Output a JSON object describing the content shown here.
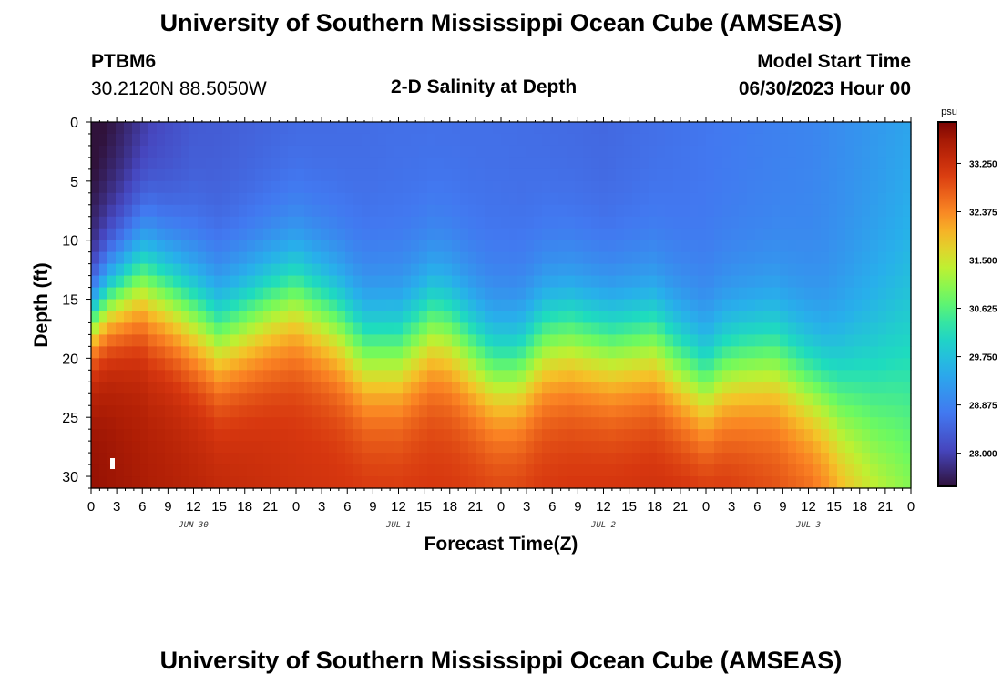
{
  "header": {
    "title": "University of Southern Mississippi Ocean Cube (AMSEAS)",
    "station_id": "PTBM6",
    "station_coords": "30.2120N  88.5050W",
    "plot_subtitle": "2-D Salinity at Depth",
    "model_start_label": "Model Start Time",
    "model_start_value": "06/30/2023 Hour 00"
  },
  "footer": {
    "title": "University of Southern Mississippi Ocean Cube (AMSEAS)"
  },
  "chart_data": {
    "type": "heatmap",
    "title": "2-D Salinity at Depth",
    "xlabel": "Forecast Time(Z)",
    "ylabel": "Depth (ft)",
    "x_range_hours": [
      0,
      96
    ],
    "x_tick_labels": [
      "0",
      "3",
      "6",
      "9",
      "12",
      "15",
      "18",
      "21",
      "0",
      "3",
      "6",
      "9",
      "12",
      "15",
      "18",
      "21",
      "0",
      "3",
      "6",
      "9",
      "12",
      "15",
      "18",
      "21",
      "0",
      "3",
      "6",
      "9",
      "12",
      "15",
      "18",
      "21",
      "0"
    ],
    "date_labels": [
      {
        "label": "JUN 30",
        "hour": 12
      },
      {
        "label": "JUL 1",
        "hour": 36
      },
      {
        "label": "JUL 2",
        "hour": 60
      },
      {
        "label": "JUL 3",
        "hour": 84
      }
    ],
    "y_range_ft": [
      0,
      31
    ],
    "y_ticks": [
      0,
      5,
      10,
      15,
      20,
      25,
      30
    ],
    "colorbar": {
      "unit": "psu",
      "min": 27.4,
      "max": 34.0,
      "tick_values": [
        33.25,
        32.375,
        31.5,
        30.625,
        29.75,
        28.875,
        28.0
      ],
      "tick_labels": [
        "33.250",
        "32.375",
        "31.500",
        "30.625",
        "29.750",
        "28.875",
        "28.000"
      ]
    },
    "surface_salinity_psu": [
      {
        "hour": 0,
        "value": 27.5
      },
      {
        "hour": 6,
        "value": 27.9
      },
      {
        "hour": 12,
        "value": 28.3
      },
      {
        "hour": 24,
        "value": 28.5
      },
      {
        "hour": 36,
        "value": 28.6
      },
      {
        "hour": 48,
        "value": 28.6
      },
      {
        "hour": 60,
        "value": 28.5
      },
      {
        "hour": 72,
        "value": 28.7
      },
      {
        "hour": 84,
        "value": 28.9
      },
      {
        "hour": 96,
        "value": 29.3
      }
    ],
    "bottom_salinity_psu": [
      {
        "hour": 0,
        "value": 33.8
      },
      {
        "hour": 24,
        "value": 33.2
      },
      {
        "hour": 48,
        "value": 33.1
      },
      {
        "hour": 72,
        "value": 33.3
      },
      {
        "hour": 84,
        "value": 32.8
      },
      {
        "hour": 96,
        "value": 31.4
      }
    ],
    "halocline_depth_ft": [
      {
        "hour": 0,
        "value": 17
      },
      {
        "hour": 2,
        "value": 15
      },
      {
        "hour": 6,
        "value": 13
      },
      {
        "hour": 10,
        "value": 15
      },
      {
        "hour": 15,
        "value": 18
      },
      {
        "hour": 21,
        "value": 15.5
      },
      {
        "hour": 24,
        "value": 14.5
      },
      {
        "hour": 29,
        "value": 17
      },
      {
        "hour": 32,
        "value": 19.5
      },
      {
        "hour": 36,
        "value": 19.5
      },
      {
        "hour": 40,
        "value": 17
      },
      {
        "hour": 42,
        "value": 17.5
      },
      {
        "hour": 47,
        "value": 21
      },
      {
        "hour": 50,
        "value": 21
      },
      {
        "hour": 53,
        "value": 18.5
      },
      {
        "hour": 56,
        "value": 18
      },
      {
        "hour": 61,
        "value": 19
      },
      {
        "hour": 66,
        "value": 18.5
      },
      {
        "hour": 68,
        "value": 20
      },
      {
        "hour": 72,
        "value": 22.5
      },
      {
        "hour": 74,
        "value": 21
      },
      {
        "hour": 76,
        "value": 20.5
      },
      {
        "hour": 80,
        "value": 20
      },
      {
        "hour": 84,
        "value": 22
      },
      {
        "hour": 88,
        "value": 23.5
      },
      {
        "hour": 92,
        "value": 23.5
      },
      {
        "hour": 96,
        "value": 22
      }
    ]
  }
}
